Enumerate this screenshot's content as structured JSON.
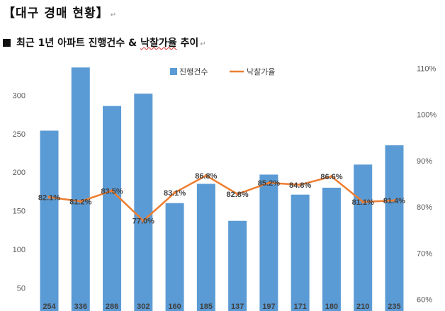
{
  "doc": {
    "title": "【대구 경매 현황】",
    "section_title": "최근 1년 아파트 진행건수 & ",
    "section_title_underlined": "낙찰가율",
    "section_title_tail": " 추이"
  },
  "chart_data": {
    "type": "bar",
    "categories": [
      "",
      "",
      "",
      "",
      "",
      "",
      "",
      "",
      "",
      "",
      "",
      ""
    ],
    "series": [
      {
        "name": "진행건수",
        "type": "bar",
        "axis": "left",
        "color": "#5b9bd5",
        "values": [
          254,
          336,
          286,
          302,
          160,
          185,
          137,
          197,
          171,
          180,
          210,
          235
        ],
        "labels": [
          "254",
          "336",
          "286",
          "302",
          "160",
          "185",
          "137",
          "197",
          "171",
          "180",
          "210",
          "235"
        ]
      },
      {
        "name": "낙찰가율",
        "type": "line",
        "axis": "right",
        "color": "#ed7d31",
        "values": [
          82.1,
          81.2,
          83.5,
          77.0,
          83.1,
          86.8,
          82.8,
          85.2,
          84.8,
          86.6,
          81.1,
          81.4
        ],
        "labels": [
          "82.1%",
          "81.2%",
          "83.5%",
          "77.0%",
          "83.1%",
          "86.8%",
          "82.8%",
          "85.2%",
          "84.8%",
          "86.6%",
          "81.1%",
          "81.4%"
        ]
      }
    ],
    "y_left": {
      "ticks": [
        "50",
        "100",
        "150",
        "200",
        "250",
        "300"
      ],
      "tick_values": [
        50,
        100,
        150,
        200,
        250,
        300
      ],
      "range": [
        20,
        350
      ]
    },
    "y_right": {
      "ticks": [
        "60%",
        "70%",
        "80%",
        "90%",
        "100%",
        "110%"
      ],
      "tick_values": [
        60,
        70,
        80,
        90,
        100,
        110
      ],
      "range": [
        57.5,
        112.5
      ]
    },
    "legend": {
      "position": "top"
    },
    "grid": false
  }
}
